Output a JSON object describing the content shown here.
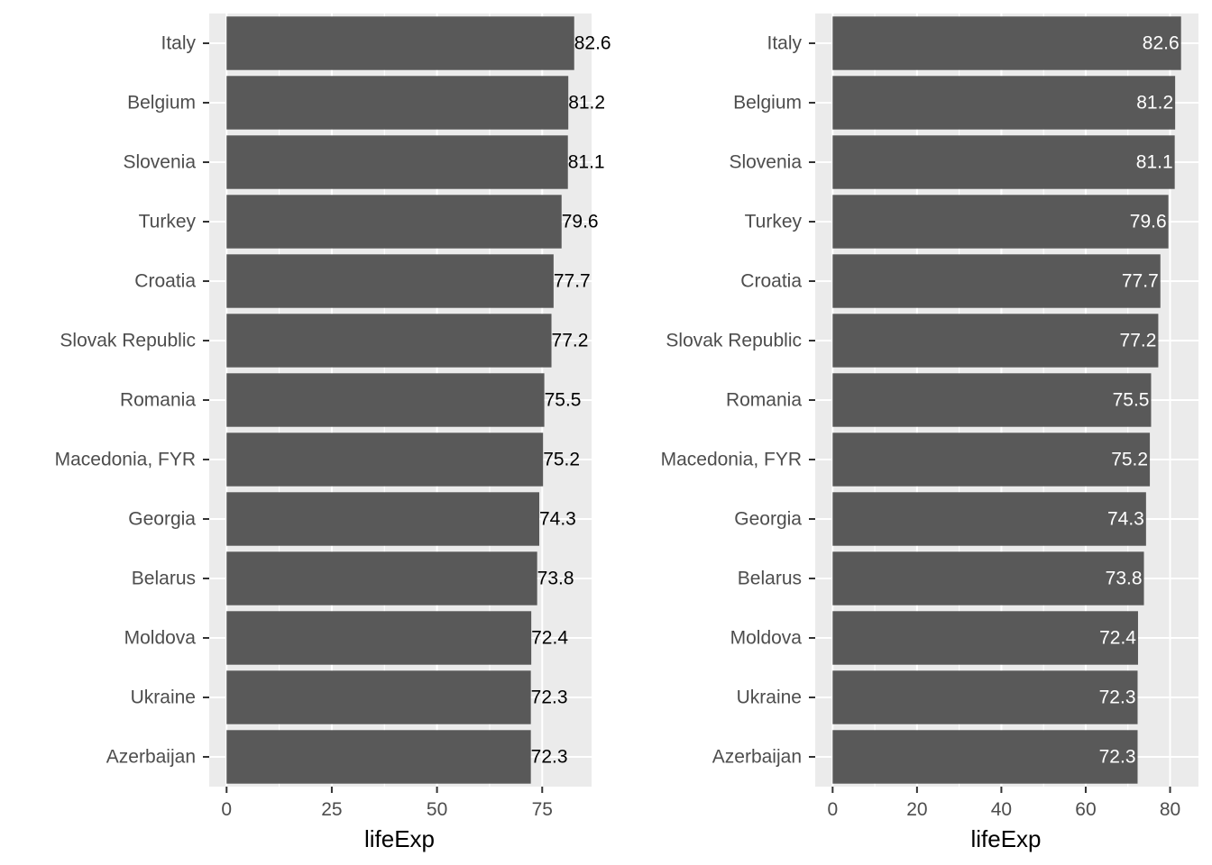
{
  "chart_data": [
    {
      "type": "bar",
      "orientation": "horizontal",
      "label_style": "outside",
      "categories": [
        "Italy",
        "Belgium",
        "Slovenia",
        "Turkey",
        "Croatia",
        "Slovak Republic",
        "Romania",
        "Macedonia, FYR",
        "Georgia",
        "Belarus",
        "Moldova",
        "Ukraine",
        "Azerbaijan"
      ],
      "values": [
        82.6,
        81.2,
        81.1,
        79.6,
        77.7,
        77.2,
        75.5,
        75.2,
        74.3,
        73.8,
        72.4,
        72.3,
        72.3
      ],
      "data_labels": [
        "82.6",
        "81.2",
        "81.1",
        "79.6",
        "77.7",
        "77.2",
        "75.5",
        "75.2",
        "74.3",
        "73.8",
        "72.4",
        "72.3",
        "72.3"
      ],
      "xlabel": "lifeExp",
      "ylabel": "",
      "xlim": [
        -4.13,
        86.73
      ],
      "xticks": [
        0,
        25,
        50,
        75
      ],
      "xtick_labels": [
        "0",
        "25",
        "50",
        "75"
      ],
      "minor_ticks": [
        12.5,
        37.5,
        62.5
      ],
      "grid": true,
      "bar_color": "#595959",
      "panel_color": "#ebebeb"
    },
    {
      "type": "bar",
      "orientation": "horizontal",
      "label_style": "inside",
      "categories": [
        "Italy",
        "Belgium",
        "Slovenia",
        "Turkey",
        "Croatia",
        "Slovak Republic",
        "Romania",
        "Macedonia, FYR",
        "Georgia",
        "Belarus",
        "Moldova",
        "Ukraine",
        "Azerbaijan"
      ],
      "values": [
        82.6,
        81.2,
        81.1,
        79.6,
        77.7,
        77.2,
        75.5,
        75.2,
        74.3,
        73.8,
        72.4,
        72.3,
        72.3
      ],
      "data_labels": [
        "82.6",
        "81.2",
        "81.1",
        "79.6",
        "77.7",
        "77.2",
        "75.5",
        "75.2",
        "74.3",
        "73.8",
        "72.4",
        "72.3",
        "72.3"
      ],
      "xlabel": "lifeExp",
      "ylabel": "",
      "xlim": [
        -4.13,
        86.73
      ],
      "xticks": [
        0,
        20,
        40,
        60,
        80
      ],
      "xtick_labels": [
        "0",
        "20",
        "40",
        "60",
        "80"
      ],
      "minor_ticks": [
        10,
        30,
        50,
        70
      ],
      "grid": true,
      "bar_color": "#595959",
      "panel_color": "#ebebeb"
    }
  ]
}
